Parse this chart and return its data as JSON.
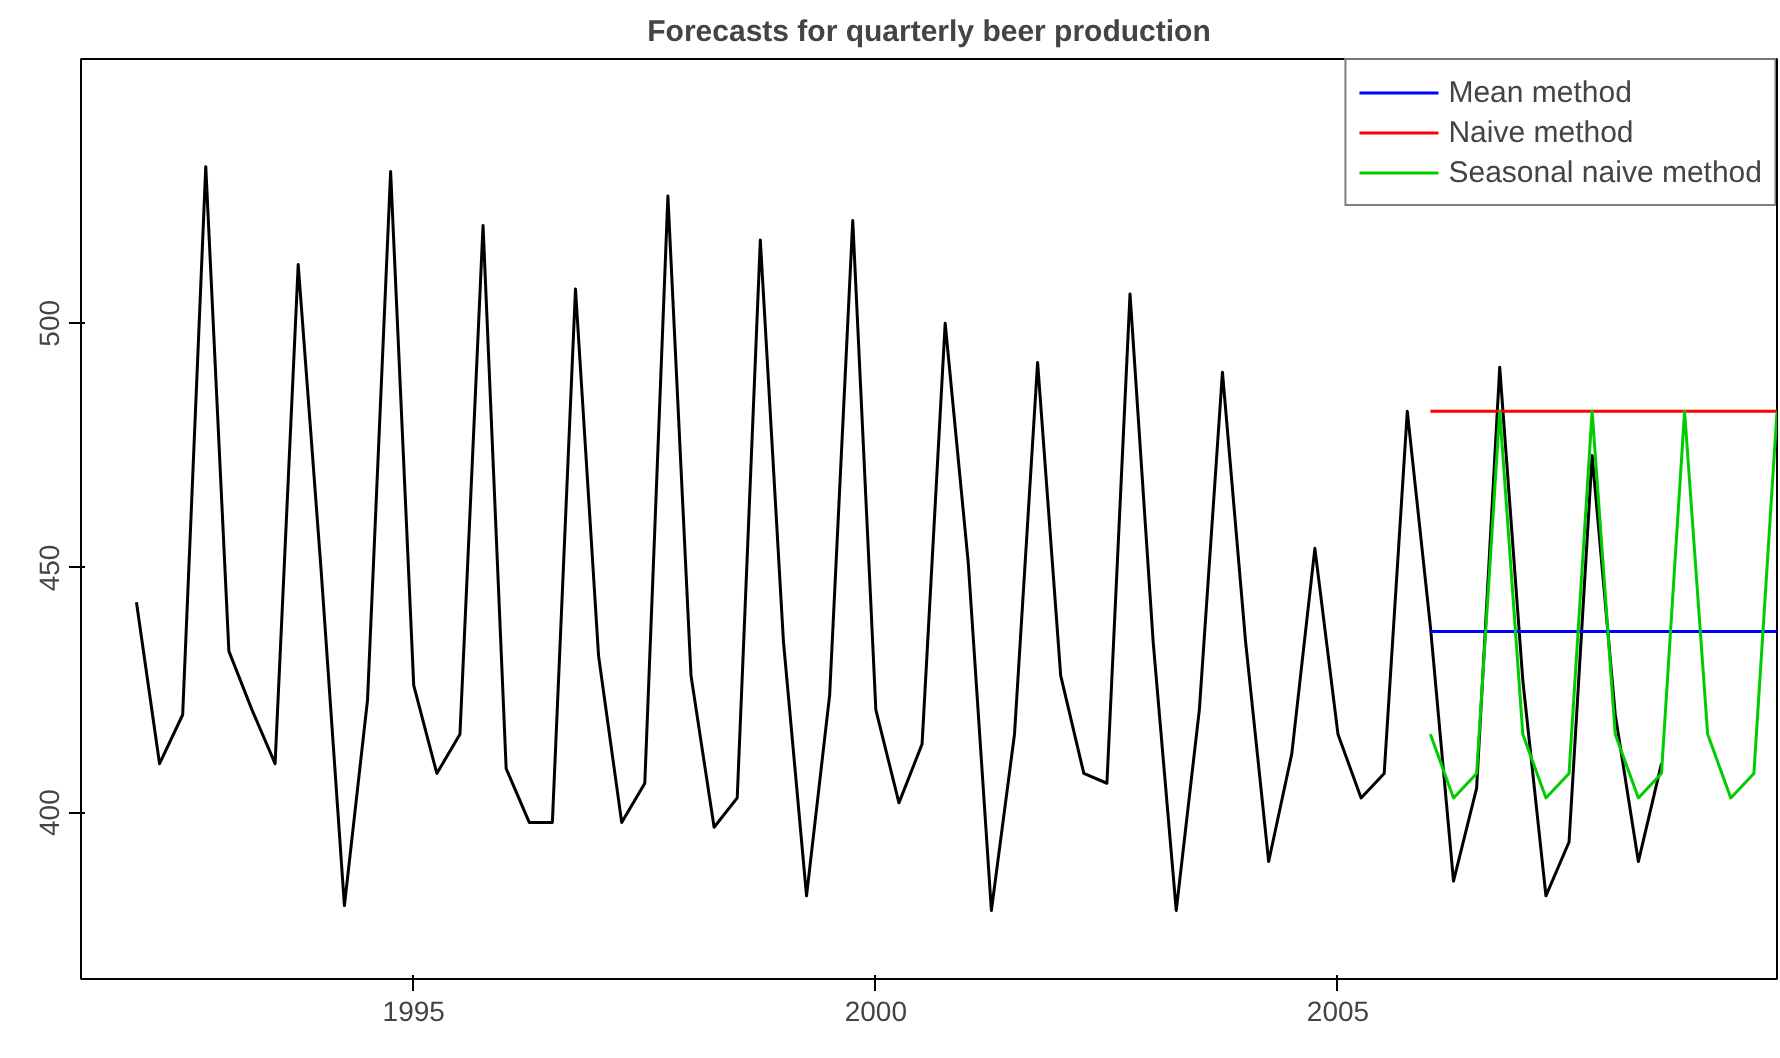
{
  "chart_data": {
    "type": "line",
    "title": "Forecasts for quarterly beer production",
    "xlim": [
      1991.4,
      2009.75
    ],
    "ylim": [
      366,
      554
    ],
    "xticks": [
      1995,
      2000,
      2005
    ],
    "yticks": [
      400,
      450,
      500
    ],
    "grid": false,
    "legend": "top right",
    "line_style": "solid",
    "marker": "none",
    "series": [
      {
        "color": "#000000",
        "x": [
          1992,
          1992.25,
          1992.5,
          1992.75,
          1993,
          1993.25,
          1993.5,
          1993.75,
          1994,
          1994.25,
          1994.5,
          1994.75,
          1995,
          1995.25,
          1995.5,
          1995.75,
          1996,
          1996.25,
          1996.5,
          1996.75,
          1997,
          1997.25,
          1997.5,
          1997.75,
          1998,
          1998.25,
          1998.5,
          1998.75,
          1999,
          1999.25,
          1999.5,
          1999.75,
          2000,
          2000.25,
          2000.5,
          2000.75,
          2001,
          2001.25,
          2001.5,
          2001.75,
          2002,
          2002.25,
          2002.5,
          2002.75,
          2003,
          2003.25,
          2003.5,
          2003.75,
          2004,
          2004.25,
          2004.5,
          2004.75,
          2005,
          2005.25,
          2005.5,
          2005.75,
          2006,
          2006.25,
          2006.5,
          2006.75,
          2007,
          2007.25,
          2007.5,
          2007.75,
          2008,
          2008.25,
          2008.5
        ],
        "values": [
          443,
          410,
          420,
          532,
          433,
          421,
          410,
          512,
          449,
          381,
          423,
          531,
          426,
          408,
          416,
          520,
          409,
          398,
          398,
          507,
          432,
          398,
          406,
          526,
          428,
          397,
          403,
          517,
          435,
          383,
          424,
          521,
          421,
          402,
          414,
          500,
          451,
          380,
          416,
          492,
          428,
          408,
          406,
          506,
          435,
          380,
          421,
          490,
          435,
          390,
          412,
          454,
          416,
          403,
          408,
          482,
          438,
          386,
          405,
          491,
          427,
          383,
          394,
          473,
          420,
          390,
          410
        ]
      },
      {
        "name": "Mean method",
        "color": "#0000ff",
        "x": [
          2006,
          2009.75
        ],
        "values": [
          437,
          437
        ]
      },
      {
        "name": "Naive method",
        "color": "#ff0000",
        "x": [
          2006,
          2009.75
        ],
        "values": [
          482,
          482
        ]
      },
      {
        "name": "Seasonal naive method",
        "color": "#00cd00",
        "x": [
          2006,
          2006.25,
          2006.5,
          2006.75,
          2007,
          2007.25,
          2007.5,
          2007.75,
          2008,
          2008.25,
          2008.5,
          2008.75,
          2009,
          2009.25,
          2009.5,
          2009.75
        ],
        "values": [
          416,
          403,
          408,
          482,
          416,
          403,
          408,
          482,
          416,
          403,
          408,
          482,
          416,
          403,
          408,
          482
        ]
      }
    ]
  }
}
